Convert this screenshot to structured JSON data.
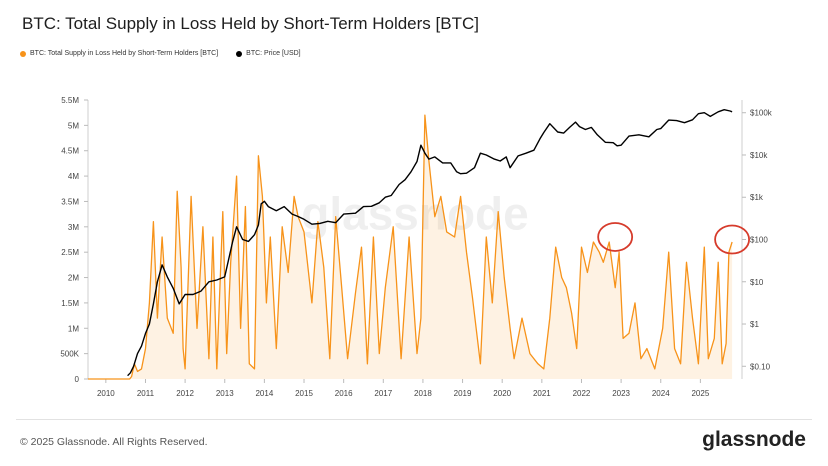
{
  "header": {
    "title": "BTC: Total Supply in Loss Held by Short-Term Holders [BTC]"
  },
  "footer": {
    "copyright": "© 2025 Glassnode. All Rights Reserved.",
    "brand": "glassnode",
    "watermark": "glassnode"
  },
  "chart_data": {
    "type": "area",
    "title": "BTC: Total Supply in Loss Held by Short-Term Holders [BTC]",
    "x_range": [
      2009.55,
      2026.05
    ],
    "x_ticks": [
      2010,
      2011,
      2012,
      2013,
      2014,
      2015,
      2016,
      2017,
      2018,
      2019,
      2020,
      2021,
      2022,
      2023,
      2024,
      2025
    ],
    "x_tick_labels": [
      "2010",
      "2011",
      "2012",
      "2013",
      "2014",
      "2015",
      "2016",
      "2017",
      "2018",
      "2019",
      "2020",
      "2021",
      "2022",
      "2023",
      "2024",
      "2025"
    ],
    "y_left": {
      "range": [
        0,
        5500000
      ],
      "ticks": [
        0,
        500000,
        1000000,
        1500000,
        2000000,
        2500000,
        3000000,
        3500000,
        4000000,
        4500000,
        5000000,
        5500000
      ],
      "tick_labels": [
        "0",
        "500K",
        "1M",
        "1.5M",
        "2M",
        "2.5M",
        "3M",
        "3.5M",
        "4M",
        "4.5M",
        "5M",
        "5.5M"
      ]
    },
    "y_right": {
      "scale": "log",
      "range": [
        0.05,
        200000
      ],
      "ticks": [
        0.1,
        1,
        10,
        100,
        1000,
        10000,
        100000
      ],
      "tick_labels": [
        "$0.10",
        "$1",
        "$10",
        "$100",
        "$1k",
        "$10k",
        "$100k"
      ]
    },
    "grid": false,
    "legend_position": "top-left",
    "series": [
      {
        "name": "BTC: Total Supply in Loss Held by Short-Term Holders [BTC]",
        "color": "#f7931a",
        "axis": "left",
        "x": [
          2009.55,
          2010.6,
          2010.65,
          2010.72,
          2010.8,
          2010.9,
          2011.0,
          2011.1,
          2011.2,
          2011.3,
          2011.42,
          2011.55,
          2011.7,
          2011.8,
          2011.9,
          2011.95,
          2012.0,
          2012.15,
          2012.3,
          2012.45,
          2012.6,
          2012.7,
          2012.8,
          2012.95,
          2013.05,
          2013.15,
          2013.3,
          2013.4,
          2013.52,
          2013.62,
          2013.75,
          2013.85,
          2013.95,
          2014.05,
          2014.15,
          2014.3,
          2014.45,
          2014.6,
          2014.75,
          2014.85,
          2015.0,
          2015.2,
          2015.35,
          2015.5,
          2015.65,
          2015.8,
          2015.95,
          2016.1,
          2016.3,
          2016.45,
          2016.6,
          2016.75,
          2016.9,
          2017.05,
          2017.25,
          2017.45,
          2017.65,
          2017.85,
          2017.95,
          2018.05,
          2018.15,
          2018.3,
          2018.45,
          2018.6,
          2018.8,
          2018.95,
          2019.1,
          2019.25,
          2019.45,
          2019.6,
          2019.75,
          2019.9,
          2020.05,
          2020.2,
          2020.3,
          2020.5,
          2020.7,
          2020.9,
          2021.05,
          2021.2,
          2021.35,
          2021.5,
          2021.62,
          2021.75,
          2021.88,
          2022.0,
          2022.15,
          2022.3,
          2022.45,
          2022.55,
          2022.7,
          2022.85,
          2022.95,
          2023.05,
          2023.2,
          2023.35,
          2023.5,
          2023.65,
          2023.85,
          2024.05,
          2024.2,
          2024.35,
          2024.5,
          2024.65,
          2024.8,
          2024.95,
          2025.1,
          2025.2,
          2025.35,
          2025.45,
          2025.55,
          2025.65,
          2025.72,
          2025.8
        ],
        "values": [
          0,
          0,
          50000,
          300000,
          150000,
          200000,
          600000,
          1500000,
          3100000,
          1200000,
          2800000,
          1200000,
          900000,
          3700000,
          2200000,
          600000,
          200000,
          3600000,
          1000000,
          3000000,
          400000,
          2800000,
          200000,
          3300000,
          500000,
          2300000,
          4000000,
          1000000,
          3400000,
          300000,
          200000,
          4400000,
          3600000,
          1500000,
          2800000,
          600000,
          3000000,
          2100000,
          3600000,
          3200000,
          2900000,
          1500000,
          3100000,
          2200000,
          400000,
          3200000,
          1800000,
          400000,
          1700000,
          2600000,
          300000,
          2800000,
          500000,
          1800000,
          3000000,
          400000,
          2800000,
          500000,
          1200000,
          5200000,
          4300000,
          3200000,
          3600000,
          2900000,
          2800000,
          3600000,
          2500000,
          1600000,
          300000,
          2800000,
          1500000,
          3300000,
          2000000,
          1000000,
          400000,
          1200000,
          500000,
          300000,
          200000,
          1200000,
          2600000,
          2000000,
          1800000,
          1300000,
          600000,
          2600000,
          2100000,
          2700000,
          2500000,
          2300000,
          2700000,
          1800000,
          2500000,
          800000,
          900000,
          1500000,
          400000,
          600000,
          200000,
          1000000,
          2500000,
          600000,
          300000,
          2300000,
          1200000,
          300000,
          2600000,
          400000,
          800000,
          2300000,
          300000,
          700000,
          2500000,
          2700000
        ]
      },
      {
        "name": "BTC: Price [USD]",
        "color": "#000000",
        "axis": "right",
        "x": [
          2010.55,
          2010.62,
          2010.7,
          2010.8,
          2010.9,
          2011.0,
          2011.1,
          2011.2,
          2011.3,
          2011.42,
          2011.55,
          2011.7,
          2011.85,
          2012.0,
          2012.2,
          2012.4,
          2012.6,
          2012.8,
          2013.0,
          2013.2,
          2013.3,
          2013.45,
          2013.6,
          2013.75,
          2013.85,
          2013.92,
          2014.0,
          2014.1,
          2014.3,
          2014.5,
          2014.7,
          2014.85,
          2015.0,
          2015.2,
          2015.4,
          2015.6,
          2015.8,
          2016.0,
          2016.3,
          2016.5,
          2016.7,
          2016.9,
          2017.05,
          2017.2,
          2017.4,
          2017.55,
          2017.7,
          2017.85,
          2017.95,
          2018.05,
          2018.15,
          2018.3,
          2018.5,
          2018.7,
          2018.85,
          2018.95,
          2019.1,
          2019.3,
          2019.45,
          2019.6,
          2019.8,
          2019.95,
          2020.1,
          2020.2,
          2020.4,
          2020.6,
          2020.8,
          2020.95,
          2021.05,
          2021.2,
          2021.4,
          2021.55,
          2021.7,
          2021.85,
          2021.95,
          2022.1,
          2022.25,
          2022.4,
          2022.6,
          2022.8,
          2022.9,
          2023.0,
          2023.2,
          2023.45,
          2023.7,
          2023.9,
          2024.0,
          2024.2,
          2024.4,
          2024.6,
          2024.8,
          2024.95,
          2025.1,
          2025.25,
          2025.45,
          2025.6,
          2025.75,
          2025.8
        ],
        "values": [
          0.06,
          0.07,
          0.1,
          0.2,
          0.3,
          0.6,
          1,
          3,
          10,
          25,
          13,
          7,
          3,
          5,
          5,
          6,
          10,
          11,
          13,
          90,
          200,
          100,
          90,
          130,
          220,
          700,
          800,
          600,
          480,
          600,
          400,
          350,
          300,
          230,
          240,
          270,
          250,
          400,
          420,
          600,
          610,
          740,
          1000,
          1100,
          2000,
          2600,
          4000,
          7000,
          17000,
          11000,
          8000,
          9000,
          6500,
          6500,
          4000,
          3600,
          3700,
          5000,
          11000,
          10000,
          8000,
          7200,
          9000,
          5000,
          9500,
          11000,
          13000,
          24000,
          34000,
          55000,
          35000,
          33000,
          45000,
          60000,
          47000,
          40000,
          45000,
          30000,
          20000,
          19500,
          16500,
          17000,
          28000,
          30000,
          27000,
          40000,
          42000,
          67000,
          65000,
          58000,
          68000,
          95000,
          100000,
          82000,
          105000,
          118000,
          110000,
          105000
        ]
      }
    ],
    "annotations": [
      {
        "type": "circle",
        "x": 2022.85,
        "y": 2800000,
        "color": "#d63b2b"
      },
      {
        "type": "circle",
        "x": 2025.8,
        "y": 2750000,
        "color": "#d63b2b"
      }
    ]
  }
}
